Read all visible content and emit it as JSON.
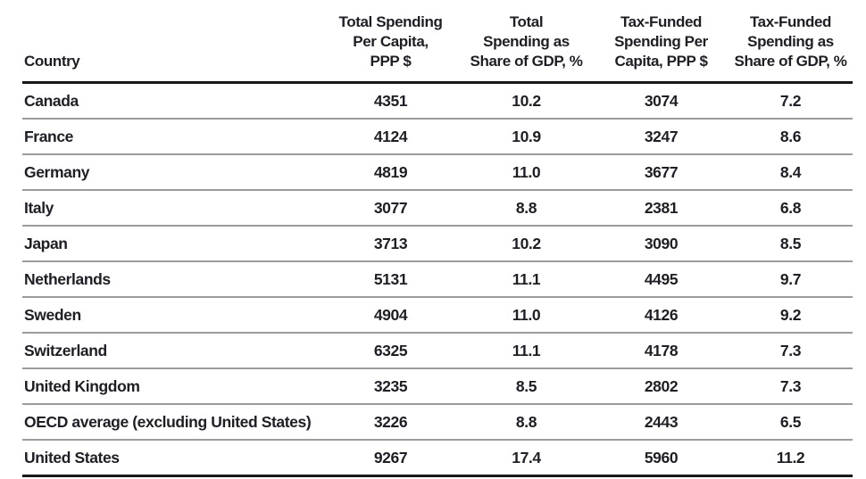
{
  "table": {
    "columns": [
      {
        "id": "country",
        "label": "Country"
      },
      {
        "id": "total_per_capita",
        "label": "Total Spending\nPer Capita,\nPPP $"
      },
      {
        "id": "total_share_gdp",
        "label": "Total\nSpending as\nShare of GDP, %"
      },
      {
        "id": "tax_per_capita",
        "label": "Tax-Funded\nSpending Per\nCapita, PPP $"
      },
      {
        "id": "tax_share_gdp",
        "label": "Tax-Funded\nSpending as\nShare of GDP, %"
      }
    ],
    "rows": [
      {
        "country": "Canada",
        "values": [
          "4351",
          "10.2",
          "3074",
          "7.2"
        ]
      },
      {
        "country": "France",
        "values": [
          "4124",
          "10.9",
          "3247",
          "8.6"
        ]
      },
      {
        "country": "Germany",
        "values": [
          "4819",
          "11.0",
          "3677",
          "8.4"
        ]
      },
      {
        "country": "Italy",
        "values": [
          "3077",
          "8.8",
          "2381",
          "6.8"
        ]
      },
      {
        "country": "Japan",
        "values": [
          "3713",
          "10.2",
          "3090",
          "8.5"
        ]
      },
      {
        "country": "Netherlands",
        "values": [
          "5131",
          "11.1",
          "4495",
          "9.7"
        ]
      },
      {
        "country": "Sweden",
        "values": [
          "4904",
          "11.0",
          "4126",
          "9.2"
        ]
      },
      {
        "country": "Switzerland",
        "values": [
          "6325",
          "11.1",
          "4178",
          "7.3"
        ]
      },
      {
        "country": "United Kingdom",
        "values": [
          "3235",
          "8.5",
          "2802",
          "7.3"
        ]
      },
      {
        "country": "OECD average (excluding United States)",
        "values": [
          "3226",
          "8.8",
          "2443",
          "6.5"
        ]
      },
      {
        "country": "United States",
        "values": [
          "9267",
          "17.4",
          "5960",
          "11.2"
        ]
      }
    ],
    "colors": {
      "text": "#1e1e24",
      "heavy_rule": "#17171a",
      "light_rule": "#9c9c9c",
      "background": "#ffffff"
    }
  }
}
